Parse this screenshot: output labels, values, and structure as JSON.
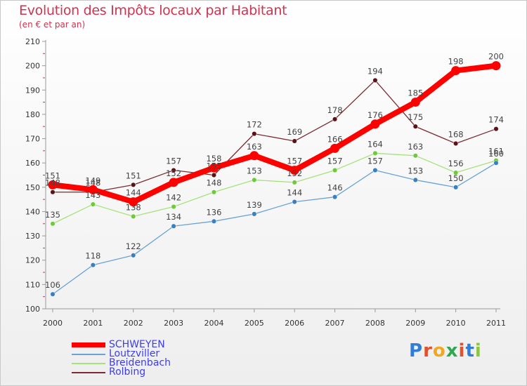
{
  "chart_data": {
    "type": "line",
    "title": "Evolution des Impôts locaux par Habitant",
    "subtitle": "(en € et par an)",
    "xlabel": "",
    "ylabel": "",
    "ylim": [
      100,
      210
    ],
    "yticks": [
      100,
      110,
      120,
      130,
      140,
      150,
      160,
      170,
      180,
      190,
      200,
      210
    ],
    "categories": [
      "2000",
      "2001",
      "2002",
      "2003",
      "2004",
      "2005",
      "2006",
      "2007",
      "2008",
      "2009",
      "2010",
      "2011"
    ],
    "series": [
      {
        "name": "SCHWEYEN",
        "values": [
          151,
          149,
          144,
          152,
          158,
          163,
          157,
          166,
          176,
          185,
          198,
          200
        ],
        "color": "#ff0000",
        "marker": "#ff0000"
      },
      {
        "name": "Loutzviller",
        "values": [
          106,
          118,
          122,
          134,
          136,
          139,
          144,
          146,
          157,
          153,
          150,
          160
        ],
        "color": "#6aa2d4",
        "marker": "#3a7fc0"
      },
      {
        "name": "Breidenbach",
        "values": [
          135,
          143,
          138,
          142,
          148,
          153,
          152,
          157,
          164,
          163,
          156,
          161
        ],
        "color": "#a6e27c",
        "marker": "#6fc93c"
      },
      {
        "name": "Rolbing",
        "values": [
          148,
          148,
          151,
          157,
          155,
          172,
          169,
          178,
          194,
          175,
          168,
          174
        ],
        "color": "#7b2b33",
        "marker": "#5a1218"
      }
    ],
    "legend_position": "bottom-left",
    "grid": false
  },
  "logo": {
    "letters": [
      "P",
      "r",
      "o",
      "x",
      "i",
      "t",
      "i"
    ],
    "colors": [
      "#2f7fd6",
      "#e2502d",
      "#f1a71f",
      "#2fa84f",
      "#e2502d",
      "#2f7fd6",
      "#8cc63f"
    ]
  }
}
